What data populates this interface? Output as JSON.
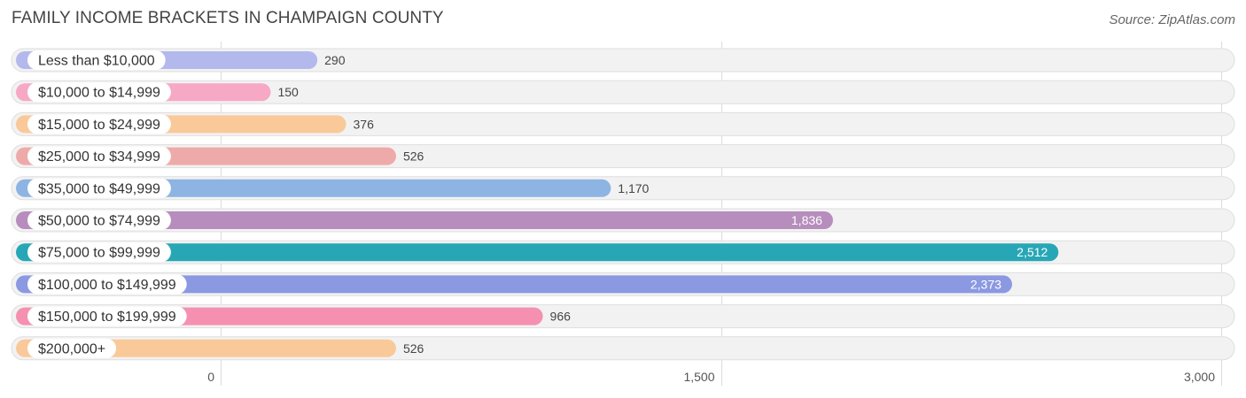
{
  "chart_data": {
    "type": "bar",
    "orientation": "horizontal",
    "title": "FAMILY INCOME BRACKETS IN CHAMPAIGN COUNTY",
    "source": "Source: ZipAtlas.com",
    "categories": [
      "Less than $10,000",
      "$10,000 to $14,999",
      "$15,000 to $24,999",
      "$25,000 to $34,999",
      "$35,000 to $49,999",
      "$50,000 to $74,999",
      "$75,000 to $99,999",
      "$100,000 to $149,999",
      "$150,000 to $199,999",
      "$200,000+"
    ],
    "values": [
      290,
      150,
      376,
      526,
      1170,
      1836,
      2512,
      2373,
      966,
      526
    ],
    "value_labels": [
      "290",
      "150",
      "376",
      "526",
      "1,170",
      "1,836",
      "2,512",
      "2,373",
      "966",
      "526"
    ],
    "colors": [
      "#b3b9ec",
      "#f7a8c4",
      "#f9c99a",
      "#eeaaa8",
      "#8db4e3",
      "#b68dbd",
      "#27a7b6",
      "#8b99e2",
      "#f590b0",
      "#f9c99a"
    ],
    "xlim": [
      0,
      3000
    ],
    "xticks": [
      0,
      1500,
      3000
    ],
    "xtick_labels": [
      "0",
      "1,500",
      "3,000"
    ],
    "xlabel": "",
    "ylabel": "",
    "grid": true
  }
}
